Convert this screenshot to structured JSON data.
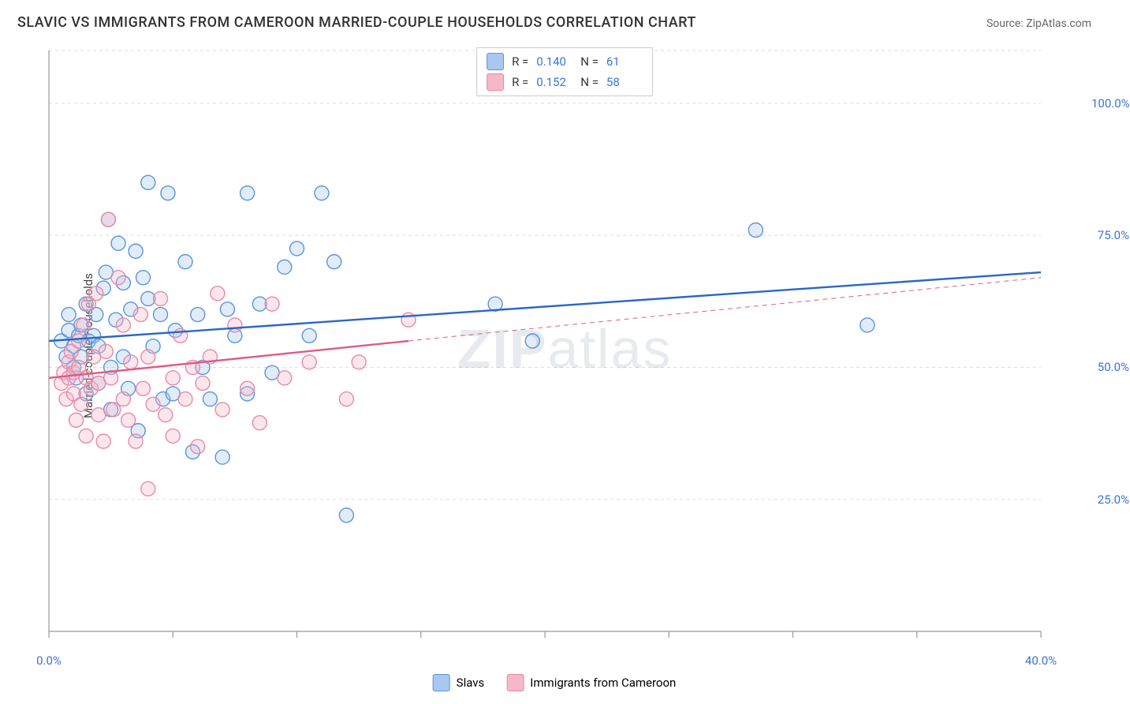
{
  "title": "SLAVIC VS IMMIGRANTS FROM CAMEROON MARRIED-COUPLE HOUSEHOLDS CORRELATION CHART",
  "source": "Source: ZipAtlas.com",
  "watermark": {
    "bold_part": "ZIP",
    "rest": "atlas"
  },
  "ylabel": "Married-couple Households",
  "chart": {
    "type": "scatter",
    "background_color": "#ffffff",
    "grid_color": "#dddddd",
    "grid_dash": "4 4",
    "axis_color": "#999999",
    "tick_mark_color": "#999999",
    "xlim": [
      0,
      40
    ],
    "ylim": [
      0,
      110
    ],
    "xticks": [
      {
        "v": 0.0,
        "label": "0.0%"
      },
      {
        "v": 5,
        "label": ""
      },
      {
        "v": 10,
        "label": ""
      },
      {
        "v": 15,
        "label": ""
      },
      {
        "v": 20,
        "label": ""
      },
      {
        "v": 25,
        "label": ""
      },
      {
        "v": 30,
        "label": ""
      },
      {
        "v": 35,
        "label": ""
      },
      {
        "v": 40.0,
        "label": "40.0%"
      }
    ],
    "yticks": [
      {
        "v": 25,
        "label": "25.0%"
      },
      {
        "v": 50,
        "label": "50.0%"
      },
      {
        "v": 75,
        "label": "75.0%"
      },
      {
        "v": 100,
        "label": "100.0%"
      }
    ],
    "xtick_label_color": "#3b74d4",
    "ytick_label_color": "#3b74d4",
    "marker_radius": 9,
    "marker_fill_opacity": 0.35,
    "marker_stroke_width": 1.4,
    "trend_stroke_width": 2.4,
    "trend_dash_stroke_width": 1,
    "trend_dash": "6 5"
  },
  "series": [
    {
      "key": "slavs",
      "label": "Slavs",
      "color_fill": "#a8c8ef",
      "color_stroke": "#5a94db",
      "trend_color": "#2a66c8",
      "R": "0.140",
      "N": "61",
      "trend": {
        "x1": 0,
        "y1": 55,
        "x2": 40,
        "y2": 68
      },
      "trend_dash": null,
      "points": [
        [
          0.5,
          55
        ],
        [
          0.7,
          52
        ],
        [
          0.8,
          57
        ],
        [
          0.8,
          60
        ],
        [
          1.0,
          54
        ],
        [
          1.0,
          50
        ],
        [
          1.1,
          48
        ],
        [
          1.2,
          56
        ],
        [
          1.3,
          58
        ],
        [
          1.3,
          52
        ],
        [
          1.5,
          62
        ],
        [
          1.5,
          45
        ],
        [
          1.6,
          55
        ],
        [
          1.8,
          56
        ],
        [
          1.9,
          60
        ],
        [
          2.0,
          47
        ],
        [
          2.0,
          54
        ],
        [
          2.2,
          65
        ],
        [
          2.3,
          68
        ],
        [
          2.4,
          78
        ],
        [
          2.5,
          50
        ],
        [
          2.5,
          42
        ],
        [
          2.7,
          59
        ],
        [
          2.8,
          73.5
        ],
        [
          3.0,
          66
        ],
        [
          3.0,
          52
        ],
        [
          3.2,
          46
        ],
        [
          3.3,
          61
        ],
        [
          3.5,
          72
        ],
        [
          3.6,
          38
        ],
        [
          3.8,
          67
        ],
        [
          4.0,
          85
        ],
        [
          4.0,
          63
        ],
        [
          4.2,
          54
        ],
        [
          4.5,
          60
        ],
        [
          4.6,
          44
        ],
        [
          4.8,
          83
        ],
        [
          5.0,
          45
        ],
        [
          5.1,
          57
        ],
        [
          5.5,
          70
        ],
        [
          5.8,
          34
        ],
        [
          6.0,
          60
        ],
        [
          6.2,
          50
        ],
        [
          6.5,
          44
        ],
        [
          7.0,
          33
        ],
        [
          7.2,
          61
        ],
        [
          7.5,
          56
        ],
        [
          8.0,
          83
        ],
        [
          8.0,
          45
        ],
        [
          8.5,
          62
        ],
        [
          9.0,
          49
        ],
        [
          9.5,
          69
        ],
        [
          10.0,
          72.5
        ],
        [
          10.5,
          56
        ],
        [
          11.0,
          83
        ],
        [
          11.5,
          70
        ],
        [
          12.0,
          22
        ],
        [
          18.0,
          62
        ],
        [
          19.5,
          55
        ],
        [
          28.5,
          76
        ],
        [
          33.0,
          58
        ]
      ]
    },
    {
      "key": "cameroon",
      "label": "Immigrants from Cameroon",
      "color_fill": "#f4b8c8",
      "color_stroke": "#e88aa5",
      "trend_color": "#e05a85",
      "R": "0.152",
      "N": "58",
      "trend": {
        "x1": 0,
        "y1": 48,
        "x2": 14.5,
        "y2": 55
      },
      "trend_dash": {
        "x1": 14.5,
        "y1": 55,
        "x2": 40,
        "y2": 67
      },
      "points": [
        [
          0.5,
          47
        ],
        [
          0.6,
          49
        ],
        [
          0.7,
          44
        ],
        [
          0.8,
          48
        ],
        [
          0.8,
          51
        ],
        [
          0.9,
          53
        ],
        [
          1.0,
          45
        ],
        [
          1.0,
          49
        ],
        [
          1.1,
          40
        ],
        [
          1.2,
          50
        ],
        [
          1.2,
          55
        ],
        [
          1.3,
          43
        ],
        [
          1.4,
          58
        ],
        [
          1.5,
          37
        ],
        [
          1.5,
          48
        ],
        [
          1.6,
          62
        ],
        [
          1.7,
          46
        ],
        [
          1.8,
          52
        ],
        [
          1.9,
          64
        ],
        [
          2.0,
          41
        ],
        [
          2.0,
          47
        ],
        [
          2.2,
          36
        ],
        [
          2.3,
          53
        ],
        [
          2.4,
          78
        ],
        [
          2.5,
          48
        ],
        [
          2.6,
          42
        ],
        [
          2.8,
          67
        ],
        [
          3.0,
          44
        ],
        [
          3.0,
          58
        ],
        [
          3.2,
          40
        ],
        [
          3.3,
          51
        ],
        [
          3.5,
          36
        ],
        [
          3.7,
          60
        ],
        [
          3.8,
          46
        ],
        [
          4.0,
          52
        ],
        [
          4.0,
          27
        ],
        [
          4.2,
          43
        ],
        [
          4.5,
          63
        ],
        [
          4.7,
          41
        ],
        [
          5.0,
          37
        ],
        [
          5.0,
          48
        ],
        [
          5.3,
          56
        ],
        [
          5.5,
          44
        ],
        [
          5.8,
          50
        ],
        [
          6.0,
          35
        ],
        [
          6.2,
          47
        ],
        [
          6.5,
          52
        ],
        [
          6.8,
          64
        ],
        [
          7.0,
          42
        ],
        [
          7.5,
          58
        ],
        [
          8.0,
          46
        ],
        [
          8.5,
          39.5
        ],
        [
          9.0,
          62
        ],
        [
          9.5,
          48
        ],
        [
          10.5,
          51
        ],
        [
          12.0,
          44
        ],
        [
          12.5,
          51
        ],
        [
          14.5,
          59
        ]
      ]
    }
  ],
  "stat_legend_labels": {
    "R": "R =",
    "N": "N ="
  },
  "stat_value_color": "#3b74d4"
}
